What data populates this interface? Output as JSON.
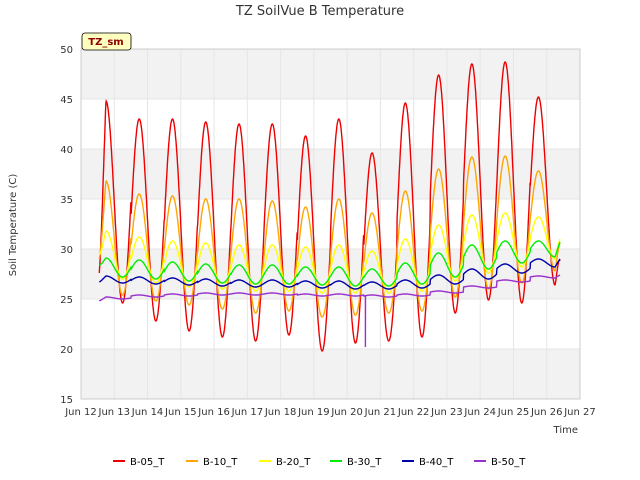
{
  "chart_data": {
    "type": "line",
    "title": "TZ SoilVue B Temperature",
    "xlabel": "Time",
    "ylabel": "Soil Temperature (C)",
    "ylim": [
      15,
      50
    ],
    "yticks": [
      15,
      20,
      25,
      30,
      35,
      40,
      45,
      50
    ],
    "xlim": [
      0,
      15
    ],
    "xticks": [
      0,
      1,
      2,
      3,
      4,
      5,
      6,
      7,
      8,
      9,
      10,
      11,
      12,
      13,
      14,
      15
    ],
    "xtick_labels": [
      "Jun 12",
      "Jun 13",
      "Jun 14",
      "Jun 15",
      "Jun 16",
      "Jun 17",
      "Jun 18",
      "Jun 19",
      "Jun 20",
      "Jun 21",
      "Jun 22",
      "Jun 23",
      "Jun 24",
      "Jun 25",
      "Jun 26",
      "Jun 27"
    ],
    "x_start": 0.55,
    "x_end": 14.4,
    "grid": true,
    "banded_background": true,
    "legend_position": "bottom",
    "badge": "TZ_sm",
    "colors": {
      "badge_bg": "#ffffc0",
      "band": "#f2f2f2",
      "grid": "#e6e6e6"
    },
    "series": [
      {
        "name": "B-05_T",
        "color": "#ee0000",
        "days": [
          {
            "max": 44.8,
            "min": 24.6
          },
          {
            "max": 43.0,
            "min": 22.8
          },
          {
            "max": 43.0,
            "min": 21.8
          },
          {
            "max": 42.7,
            "min": 21.2
          },
          {
            "max": 42.5,
            "min": 20.8
          },
          {
            "max": 42.5,
            "min": 21.4
          },
          {
            "max": 41.3,
            "min": 19.8
          },
          {
            "max": 43.0,
            "min": 20.6
          },
          {
            "max": 39.6,
            "min": 20.8
          },
          {
            "max": 44.6,
            "min": 21.2
          },
          {
            "max": 47.4,
            "min": 23.6
          },
          {
            "max": 48.5,
            "min": 24.9
          },
          {
            "max": 48.7,
            "min": 24.6
          },
          {
            "max": 45.2,
            "min": 26.4
          }
        ],
        "start": 27.6,
        "end": 28.8
      },
      {
        "name": "B-10_T",
        "color": "#ffa500",
        "days": [
          {
            "max": 36.8,
            "min": 25.4
          },
          {
            "max": 35.5,
            "min": 24.8
          },
          {
            "max": 35.3,
            "min": 24.4
          },
          {
            "max": 35.0,
            "min": 24.0
          },
          {
            "max": 35.0,
            "min": 23.6
          },
          {
            "max": 34.8,
            "min": 23.8
          },
          {
            "max": 34.2,
            "min": 23.2
          },
          {
            "max": 35.0,
            "min": 23.4
          },
          {
            "max": 33.6,
            "min": 23.6
          },
          {
            "max": 35.8,
            "min": 23.8
          },
          {
            "max": 38.0,
            "min": 25.2
          },
          {
            "max": 39.2,
            "min": 26.0
          },
          {
            "max": 39.3,
            "min": 26.6
          },
          {
            "max": 37.8,
            "min": 27.8
          }
        ],
        "start": 29.0,
        "end": 30.6
      },
      {
        "name": "B-20_T",
        "color": "#ffff00",
        "days": [
          {
            "max": 31.8,
            "min": 27.0
          },
          {
            "max": 31.2,
            "min": 26.6
          },
          {
            "max": 30.8,
            "min": 26.2
          },
          {
            "max": 30.6,
            "min": 26.0
          },
          {
            "max": 30.4,
            "min": 25.8
          },
          {
            "max": 30.4,
            "min": 25.8
          },
          {
            "max": 30.2,
            "min": 25.6
          },
          {
            "max": 30.4,
            "min": 25.6
          },
          {
            "max": 29.8,
            "min": 25.6
          },
          {
            "max": 31.0,
            "min": 25.8
          },
          {
            "max": 32.4,
            "min": 26.8
          },
          {
            "max": 33.4,
            "min": 27.6
          },
          {
            "max": 33.6,
            "min": 28.2
          },
          {
            "max": 33.2,
            "min": 29.0
          }
        ],
        "start": 29.4,
        "end": 31.0
      },
      {
        "name": "B-30_T",
        "color": "#00ee00",
        "days": [
          {
            "max": 29.1,
            "min": 27.2
          },
          {
            "max": 28.9,
            "min": 27.0
          },
          {
            "max": 28.7,
            "min": 26.8
          },
          {
            "max": 28.5,
            "min": 26.6
          },
          {
            "max": 28.4,
            "min": 26.5
          },
          {
            "max": 28.4,
            "min": 26.5
          },
          {
            "max": 28.2,
            "min": 26.4
          },
          {
            "max": 28.2,
            "min": 26.3
          },
          {
            "max": 28.0,
            "min": 26.3
          },
          {
            "max": 28.6,
            "min": 26.5
          },
          {
            "max": 29.6,
            "min": 27.2
          },
          {
            "max": 30.4,
            "min": 28.0
          },
          {
            "max": 30.8,
            "min": 28.6
          },
          {
            "max": 30.8,
            "min": 29.2
          }
        ],
        "start": 28.4,
        "end": 30.7
      },
      {
        "name": "B-40_T",
        "color": "#0000aa",
        "days": [
          {
            "max": 27.3,
            "min": 26.6
          },
          {
            "max": 27.2,
            "min": 26.5
          },
          {
            "max": 27.1,
            "min": 26.4
          },
          {
            "max": 27.0,
            "min": 26.3
          },
          {
            "max": 26.9,
            "min": 26.2
          },
          {
            "max": 26.9,
            "min": 26.2
          },
          {
            "max": 26.8,
            "min": 26.1
          },
          {
            "max": 26.8,
            "min": 26.0
          },
          {
            "max": 26.7,
            "min": 26.0
          },
          {
            "max": 26.9,
            "min": 26.1
          },
          {
            "max": 27.4,
            "min": 26.5
          },
          {
            "max": 28.0,
            "min": 27.0
          },
          {
            "max": 28.5,
            "min": 27.6
          },
          {
            "max": 29.0,
            "min": 28.2
          }
        ],
        "start": 26.7,
        "end": 29.0
      },
      {
        "name": "B-50_T",
        "color": "#9932cc",
        "days": [
          {
            "max": 25.2,
            "min": 25.0
          },
          {
            "max": 25.4,
            "min": 25.2
          },
          {
            "max": 25.5,
            "min": 25.3
          },
          {
            "max": 25.6,
            "min": 25.4
          },
          {
            "max": 25.6,
            "min": 25.4
          },
          {
            "max": 25.6,
            "min": 25.4
          },
          {
            "max": 25.5,
            "min": 25.3
          },
          {
            "max": 25.5,
            "min": 25.3
          },
          {
            "max": 25.4,
            "min": 25.2
          },
          {
            "max": 25.5,
            "min": 25.3
          },
          {
            "max": 25.8,
            "min": 25.6
          },
          {
            "max": 26.3,
            "min": 26.1
          },
          {
            "max": 26.9,
            "min": 26.7
          },
          {
            "max": 27.3,
            "min": 27.1
          }
        ],
        "start": 24.8,
        "end": 27.4,
        "spike": {
          "x": 8.55,
          "y": 20.2
        }
      }
    ]
  }
}
